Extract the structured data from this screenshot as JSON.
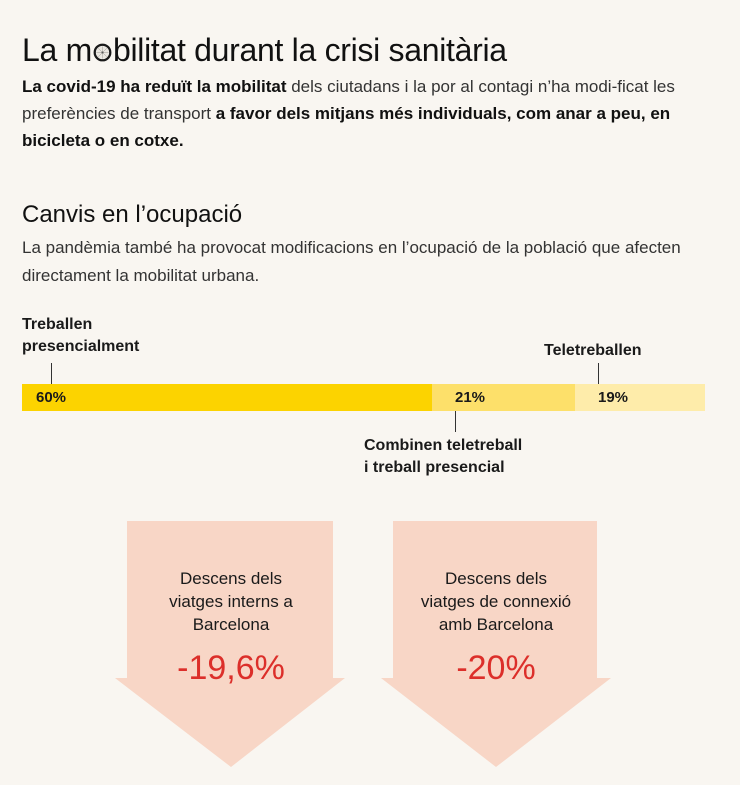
{
  "header": {
    "title_before": "La m",
    "title_icon": "bicycle-wheel-icon",
    "title_after": "bilitat durant la crisi sanitària",
    "intro": [
      {
        "text": "La covid-19  ha reduït la mobilitat",
        "style": "bold"
      },
      {
        "text": " dels ciutadans i la por al contagi n’ha modi-ficat les preferències de transport ",
        "style": "light"
      },
      {
        "text": "a favor dels mitjans més individuals, com anar a peu, en bicicleta o en cotxe.",
        "style": "bold"
      }
    ]
  },
  "section": {
    "title": "Canvis en l’ocupació",
    "subtitle": "La pandèmia també ha provocat modificacions en l’ocupació de la població que afecten directament  la mobilitat urbana."
  },
  "colors": {
    "background": "#f9f6f1",
    "bar_presencial": "#fcd300",
    "bar_combinen": "#fde06a",
    "bar_teletreballen": "#feecaa",
    "arrow_fill": "#f8d6c6",
    "decline_value": "#dc2f2a",
    "leader_line": "#333333"
  },
  "chart_data": [
    {
      "type": "bar",
      "subtype": "stacked-100-horizontal",
      "title": "Canvis en l’ocupació",
      "categories": [
        "Treballen presencialment",
        "Combinen teletreball i treball presencial",
        "Teletreballen"
      ],
      "values": [
        60,
        21,
        19
      ],
      "value_labels": [
        "60%",
        "21%",
        "19%"
      ],
      "unit": "%",
      "xlim": [
        0,
        100
      ],
      "grid": false,
      "legend": "none (direct labels)",
      "label_lines": {
        "Treballen presencialment": [
          "Treballen",
          "presencialment"
        ],
        "Combinen teletreball i treball presencial": [
          "Combinen teletreball",
          "i treball presencial"
        ],
        "Teletreballen": [
          "Teletreballen"
        ]
      },
      "label_placement": [
        "above",
        "below",
        "above"
      ]
    },
    {
      "type": "table",
      "title": "Descens de la mobilitat",
      "categories": [
        "Descens dels viatges interns a Barcelona",
        "Descens dels viatges de connexió amb Barcelona"
      ],
      "values": [
        -19.6,
        -20
      ],
      "value_labels": [
        "-19,6%",
        "-20%"
      ],
      "unit": "%",
      "label_lines": [
        [
          "Descens dels",
          "viatges interns a",
          "Barcelona"
        ],
        [
          "Descens dels",
          "viatges de connexió",
          "amb Barcelona"
        ]
      ]
    }
  ]
}
